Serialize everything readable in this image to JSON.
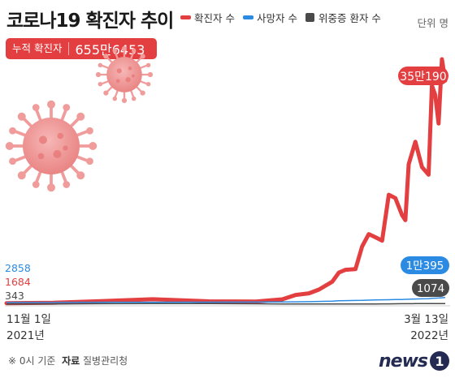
{
  "header": {
    "title": "코로나19 확진자 추이",
    "unit": "단위 명"
  },
  "legend": [
    {
      "label": "확진자 수",
      "color": "#e33f41",
      "shape": "line"
    },
    {
      "label": "사망자 수",
      "color": "#2b8be3",
      "shape": "line"
    },
    {
      "label": "위중증 환자 수",
      "color": "#4a4a4a",
      "shape": "square"
    }
  ],
  "cumulative": {
    "label": "누적 확진자",
    "value": "655만6453"
  },
  "footer": {
    "note": "※ 0시 기준",
    "source_label": "자료",
    "source": "질병관리청",
    "logo_text": "news",
    "logo_mark": "1"
  },
  "chart_data": {
    "type": "line",
    "x_start": "11월 1일",
    "x_start_year": "2021년",
    "x_end": "3월 13일",
    "x_end_year": "2022년",
    "ylim": [
      0,
      390000
    ],
    "x": [
      "2021-11-01",
      "2021-11-15",
      "2021-12-01",
      "2021-12-15",
      "2022-01-01",
      "2022-01-15",
      "2022-01-23",
      "2022-01-27",
      "2022-01-31",
      "2022-02-03",
      "2022-02-07",
      "2022-02-09",
      "2022-02-11",
      "2022-02-14",
      "2022-02-16",
      "2022-02-18",
      "2022-02-20",
      "2022-02-22",
      "2022-02-24",
      "2022-02-26",
      "2022-02-28",
      "2022-03-01",
      "2022-03-02",
      "2022-03-04",
      "2022-03-06",
      "2022-03-08",
      "2022-03-09",
      "2022-03-10",
      "2022-03-11",
      "2022-03-12",
      "2022-03-13"
    ],
    "series": [
      {
        "name": "확진자 수",
        "color": "#e33f41",
        "values": [
          1684,
          2100,
          5100,
          7800,
          4400,
          4100,
          7600,
          14500,
          17000,
          22900,
          35200,
          49500,
          53900,
          54900,
          90400,
          109800,
          104800,
          99500,
          171400,
          166200,
          139600,
          131600,
          219200,
          254300,
          214700,
          202700,
          342400,
          327500,
          282900,
          383600,
          350190
        ],
        "start_label": "1684",
        "end_label": "35만190"
      },
      {
        "name": "사망자 수",
        "color": "#2b8be3",
        "values": [
          2858,
          2900,
          3000,
          3100,
          3200,
          3300,
          3500,
          3700,
          3900,
          4300,
          4800,
          5300,
          5600,
          5800,
          6000,
          6300,
          6600,
          6800,
          7000,
          7200,
          7400,
          7600,
          7800,
          8100,
          8400,
          8700,
          9100,
          9400,
          9700,
          10000,
          10395
        ],
        "start_label": "2858",
        "end_label": "1만395"
      },
      {
        "name": "위중증 환자 수",
        "color": "#4a4a4a",
        "values": [
          343,
          400,
          700,
          1000,
          1000,
          600,
          420,
          390,
          280,
          270,
          260,
          270,
          280,
          300,
          330,
          400,
          440,
          500,
          560,
          600,
          700,
          760,
          800,
          850,
          900,
          950,
          1000,
          1020,
          1050,
          1060,
          1074
        ],
        "start_label": "343",
        "end_label": "1074"
      }
    ]
  }
}
